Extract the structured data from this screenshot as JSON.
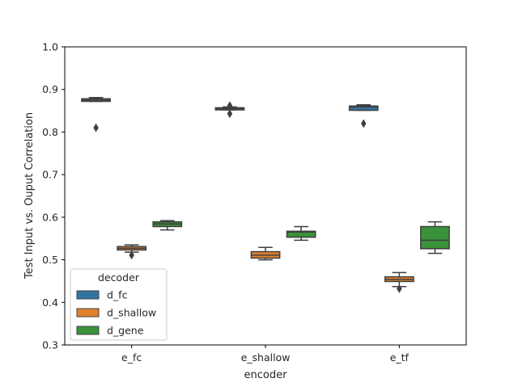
{
  "chart_data": {
    "type": "box",
    "title": "",
    "xlabel": "encoder",
    "ylabel": "Test Input vs. Ouput Correlation",
    "ylim": [
      0.3,
      1.0
    ],
    "yticks": [
      "0.3",
      "0.4",
      "0.5",
      "0.6",
      "0.7",
      "0.8",
      "0.9",
      "1.0"
    ],
    "categories": [
      "e_fc",
      "e_shallow",
      "e_tf"
    ],
    "legend": {
      "title": "decoder",
      "position": "lower-left"
    },
    "series": [
      {
        "name": "d_fc",
        "color": "#3274a1",
        "boxes": [
          {
            "whisker_low": 0.872,
            "q1": 0.872,
            "median": 0.875,
            "q3": 0.878,
            "whisker_high": 0.881,
            "outliers": [
              0.81
            ]
          },
          {
            "whisker_low": 0.852,
            "q1": 0.852,
            "median": 0.855,
            "q3": 0.857,
            "whisker_high": 0.859,
            "outliers": [
              0.843,
              0.862
            ]
          },
          {
            "whisker_low": 0.851,
            "q1": 0.851,
            "median": 0.859,
            "q3": 0.861,
            "whisker_high": 0.864,
            "outliers": [
              0.82
            ]
          }
        ]
      },
      {
        "name": "d_shallow",
        "color": "#e1812c",
        "boxes": [
          {
            "whisker_low": 0.518,
            "q1": 0.523,
            "median": 0.527,
            "q3": 0.531,
            "whisker_high": 0.535,
            "outliers": [
              0.511
            ]
          },
          {
            "whisker_low": 0.5,
            "q1": 0.504,
            "median": 0.511,
            "q3": 0.519,
            "whisker_high": 0.529,
            "outliers": []
          },
          {
            "whisker_low": 0.437,
            "q1": 0.449,
            "median": 0.454,
            "q3": 0.46,
            "whisker_high": 0.47,
            "outliers": [
              0.432
            ]
          }
        ]
      },
      {
        "name": "d_gene",
        "color": "#3a923a",
        "boxes": [
          {
            "whisker_low": 0.57,
            "q1": 0.578,
            "median": 0.584,
            "q3": 0.589,
            "whisker_high": 0.592,
            "outliers": []
          },
          {
            "whisker_low": 0.546,
            "q1": 0.553,
            "median": 0.565,
            "q3": 0.567,
            "whisker_high": 0.578,
            "outliers": []
          },
          {
            "whisker_low": 0.515,
            "q1": 0.526,
            "median": 0.546,
            "q3": 0.578,
            "whisker_high": 0.589,
            "outliers": []
          }
        ]
      }
    ]
  }
}
